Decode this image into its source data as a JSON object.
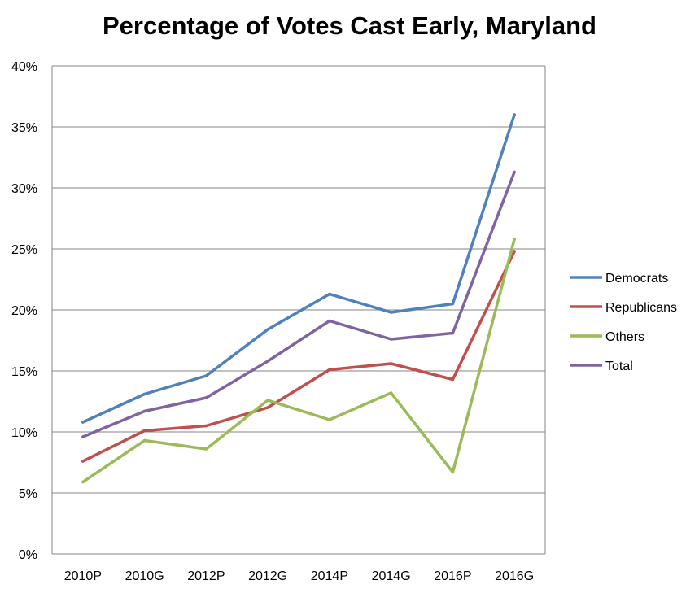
{
  "chart_data": {
    "type": "line",
    "title": "Percentage of Votes Cast Early, Maryland",
    "xlabel": "",
    "ylabel": "",
    "categories": [
      "2010P",
      "2010G",
      "2012P",
      "2012G",
      "2014P",
      "2014G",
      "2016P",
      "2016G"
    ],
    "ylim": [
      0,
      40
    ],
    "yticks": [
      "0%",
      "5%",
      "10%",
      "15%",
      "20%",
      "25%",
      "30%",
      "35%",
      "40%"
    ],
    "grid": true,
    "legend_position": "right",
    "series": [
      {
        "name": "Democrats",
        "color": "#4F81BD",
        "values": [
          10.8,
          13.1,
          14.6,
          18.4,
          21.3,
          19.8,
          20.5,
          36.0
        ]
      },
      {
        "name": "Republicans",
        "color": "#C0504D",
        "values": [
          7.6,
          10.1,
          10.5,
          12.0,
          15.1,
          15.6,
          14.3,
          24.8
        ]
      },
      {
        "name": "Others",
        "color": "#9BBB59",
        "values": [
          5.9,
          9.3,
          8.6,
          12.6,
          11.0,
          13.2,
          6.7,
          25.8
        ]
      },
      {
        "name": "Total",
        "color": "#8064A2",
        "values": [
          9.6,
          11.7,
          12.8,
          15.8,
          19.1,
          17.6,
          18.1,
          31.3
        ]
      }
    ]
  }
}
